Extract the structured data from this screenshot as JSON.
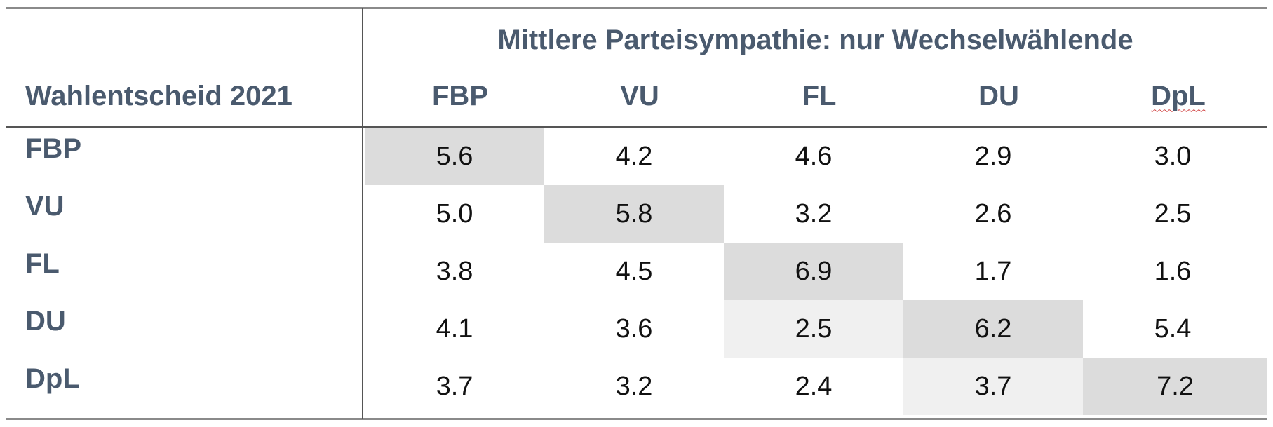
{
  "table": {
    "super_header": "Mittlere Parteisympathie: nur Wechselwählende",
    "row_header_title": "Wahlentscheid 2021",
    "columns": [
      "FBP",
      "VU",
      "FL",
      "DU",
      "DpL"
    ],
    "rows": [
      {
        "label": "FBP",
        "values": [
          "5.6",
          "4.2",
          "4.6",
          "2.9",
          "3.0"
        ]
      },
      {
        "label": "VU",
        "values": [
          "5.0",
          "5.8",
          "3.2",
          "2.6",
          "2.5"
        ]
      },
      {
        "label": "FL",
        "values": [
          "3.8",
          "4.5",
          "6.9",
          "1.7",
          "1.6"
        ]
      },
      {
        "label": "DU",
        "values": [
          "4.1",
          "3.6",
          "2.5",
          "6.2",
          "5.4"
        ]
      },
      {
        "label": "DpL",
        "values": [
          "3.7",
          "3.2",
          "2.4",
          "3.7",
          "7.2"
        ]
      }
    ],
    "shading": {
      "diagonal_color": "#dcdcdc",
      "light_color": "#f0f0f0",
      "light_cells": [
        [
          3,
          2
        ],
        [
          4,
          3
        ]
      ]
    }
  }
}
